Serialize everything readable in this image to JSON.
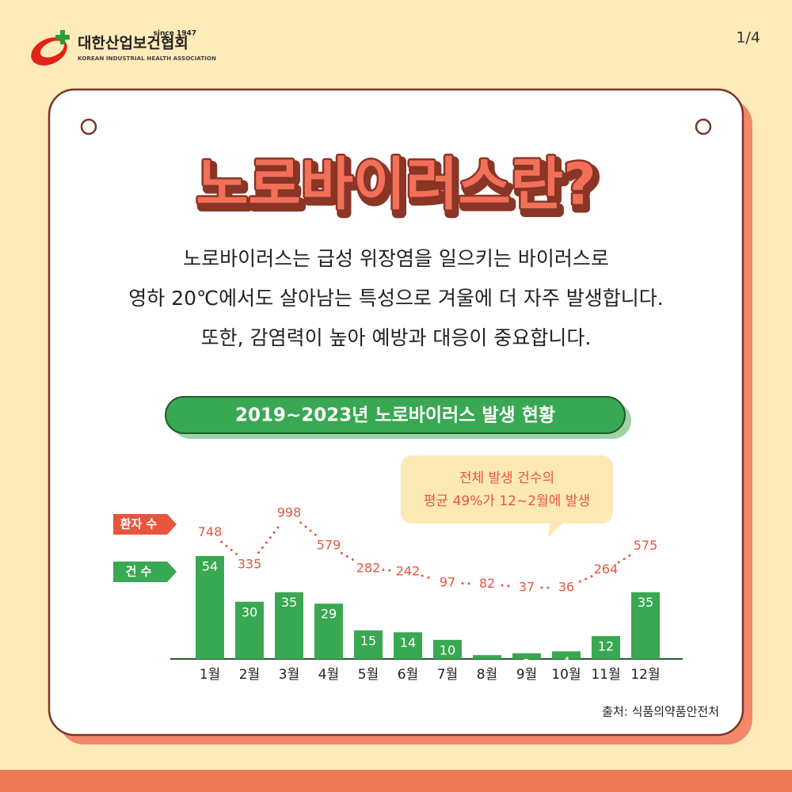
{
  "header": {
    "org": "대한산업보건협회",
    "since": "since 1947",
    "org_en": "KOREAN INDUSTRIAL HEALTH ASSOCIATION",
    "page": "1/4"
  },
  "title": "노로바이러스란?",
  "intro": [
    "노로바이러스는 급성 위장염을 일으키는 바이러스로",
    "영하 20℃에서도 살아남는 특성으로 겨울에 더 자주 발생합니다.",
    "또한, 감염력이 높아 예방과 대응이 중요합니다."
  ],
  "chart_data": {
    "type": "bar",
    "title": "2019~2023년 노로바이러스 발생 현황",
    "categories": [
      "1월",
      "2월",
      "3월",
      "4월",
      "5월",
      "6월",
      "7월",
      "8월",
      "9월",
      "10월",
      "11월",
      "12월"
    ],
    "series": [
      {
        "name": "환자 수",
        "color": "#e8553e",
        "kind": "line",
        "values": [
          748,
          335,
          998,
          579,
          282,
          242,
          97,
          82,
          37,
          36,
          264,
          575
        ]
      },
      {
        "name": "건 수",
        "color": "#39a852",
        "kind": "bar",
        "values": [
          54,
          30,
          35,
          29,
          15,
          14,
          10,
          2,
          3,
          4,
          12,
          35
        ]
      }
    ],
    "annotation": [
      "전체 발생 건수의",
      "평균 49%가 12~2월에 발생"
    ]
  },
  "source": "출처: 식품의약품안전처"
}
